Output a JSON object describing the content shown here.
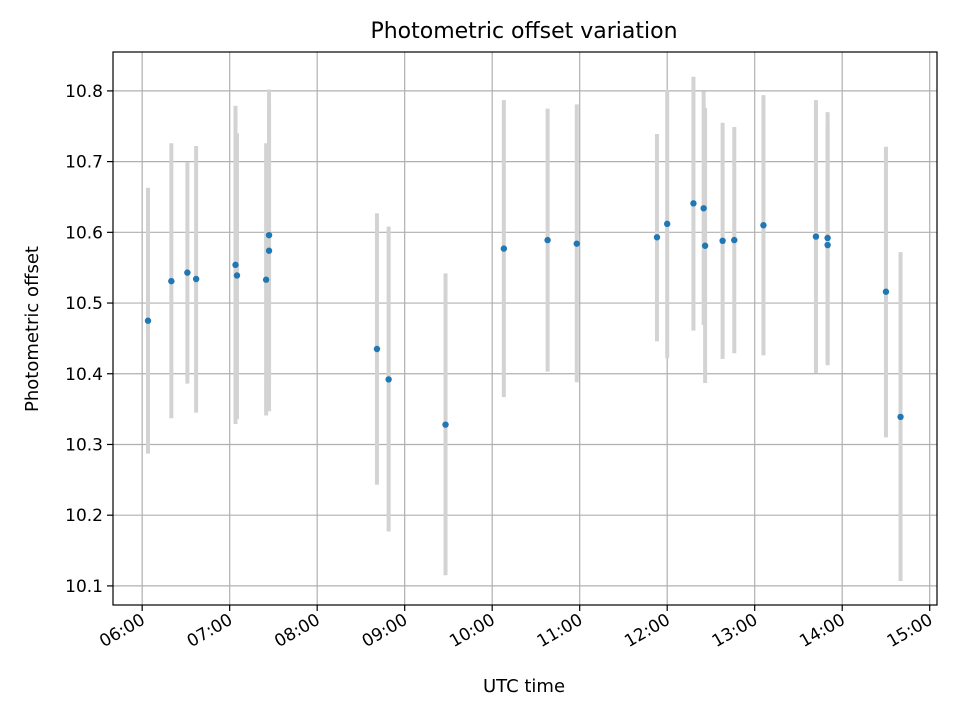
{
  "chart_data": {
    "type": "scatter",
    "title": "Photometric offset variation",
    "xlabel": "UTC time",
    "ylabel": "Photometric offset",
    "x_unit": "UTC time (HH:MM)",
    "xlim": [
      "05:40",
      "15:05"
    ],
    "ylim": [
      10.073,
      10.855
    ],
    "grid": true,
    "x_ticks": [
      "06:00",
      "07:00",
      "08:00",
      "09:00",
      "10:00",
      "11:00",
      "12:00",
      "13:00",
      "14:00",
      "15:00"
    ],
    "y_ticks": [
      "10.1",
      "10.2",
      "10.3",
      "10.4",
      "10.5",
      "10.6",
      "10.7",
      "10.8"
    ],
    "colors": {
      "marker": "#1f77b4",
      "errorbar": "#d3d3d3",
      "grid": "#b0b0b0"
    },
    "series": [
      {
        "points": [
          {
            "x": "06:04",
            "y": 10.475,
            "ylo": 10.287,
            "yhi": 10.663
          },
          {
            "x": "06:20",
            "y": 10.531,
            "ylo": 10.337,
            "yhi": 10.726
          },
          {
            "x": "06:31",
            "y": 10.543,
            "ylo": 10.386,
            "yhi": 10.699
          },
          {
            "x": "06:37",
            "y": 10.534,
            "ylo": 10.345,
            "yhi": 10.722
          },
          {
            "x": "07:04",
            "y": 10.554,
            "ylo": 10.329,
            "yhi": 10.779
          },
          {
            "x": "07:05",
            "y": 10.539,
            "ylo": 10.336,
            "yhi": 10.74
          },
          {
            "x": "07:25",
            "y": 10.533,
            "ylo": 10.341,
            "yhi": 10.726
          },
          {
            "x": "07:27",
            "y": 10.596,
            "ylo": 10.39,
            "yhi": 10.802
          },
          {
            "x": "07:27",
            "y": 10.574,
            "ylo": 10.347,
            "yhi": 10.78
          },
          {
            "x": "08:41",
            "y": 10.435,
            "ylo": 10.243,
            "yhi": 10.627
          },
          {
            "x": "08:49",
            "y": 10.392,
            "ylo": 10.177,
            "yhi": 10.608
          },
          {
            "x": "09:28",
            "y": 10.328,
            "ylo": 10.115,
            "yhi": 10.542
          },
          {
            "x": "10:08",
            "y": 10.577,
            "ylo": 10.367,
            "yhi": 10.787
          },
          {
            "x": "10:38",
            "y": 10.589,
            "ylo": 10.403,
            "yhi": 10.775
          },
          {
            "x": "10:58",
            "y": 10.584,
            "ylo": 10.388,
            "yhi": 10.781
          },
          {
            "x": "11:53",
            "y": 10.593,
            "ylo": 10.446,
            "yhi": 10.739
          },
          {
            "x": "12:00",
            "y": 10.612,
            "ylo": 10.422,
            "yhi": 10.801
          },
          {
            "x": "12:18",
            "y": 10.641,
            "ylo": 10.461,
            "yhi": 10.82
          },
          {
            "x": "12:25",
            "y": 10.634,
            "ylo": 10.469,
            "yhi": 10.799
          },
          {
            "x": "12:26",
            "y": 10.581,
            "ylo": 10.387,
            "yhi": 10.776
          },
          {
            "x": "12:38",
            "y": 10.588,
            "ylo": 10.421,
            "yhi": 10.755
          },
          {
            "x": "12:46",
            "y": 10.589,
            "ylo": 10.429,
            "yhi": 10.749
          },
          {
            "x": "13:06",
            "y": 10.61,
            "ylo": 10.426,
            "yhi": 10.794
          },
          {
            "x": "13:42",
            "y": 10.594,
            "ylo": 10.401,
            "yhi": 10.787
          },
          {
            "x": "13:50",
            "y": 10.592,
            "ylo": 10.415,
            "yhi": 10.77
          },
          {
            "x": "13:50",
            "y": 10.582,
            "ylo": 10.412,
            "yhi": 10.752
          },
          {
            "x": "14:30",
            "y": 10.516,
            "ylo": 10.31,
            "yhi": 10.721
          },
          {
            "x": "14:40",
            "y": 10.339,
            "ylo": 10.107,
            "yhi": 10.572
          }
        ]
      }
    ]
  }
}
